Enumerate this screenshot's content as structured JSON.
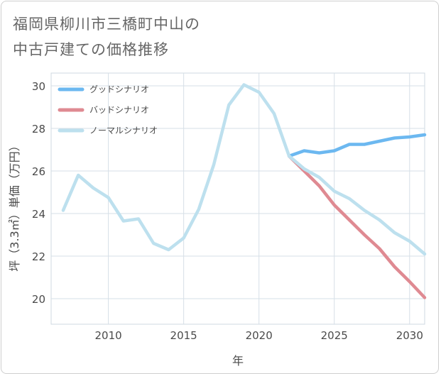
{
  "title_lines": [
    "福岡県柳川市三橋町中山の",
    "中古戸建ての価格推移"
  ],
  "chart_data": {
    "type": "line",
    "xlabel": "年",
    "ylabel": "坪（3.3㎡）単価（万円）",
    "xlim": [
      2006.2,
      2031
    ],
    "ylim": [
      18.8,
      30.6
    ],
    "xticks": [
      2010,
      2015,
      2020,
      2025,
      2030
    ],
    "yticks": [
      20,
      22,
      24,
      26,
      28,
      30
    ],
    "grid": true,
    "legend_position": "top-left",
    "series": [
      {
        "name": "グッドシナリオ",
        "color": "#6cb8f0",
        "x": [
          2022,
          2023,
          2024,
          2025,
          2026,
          2027,
          2028,
          2029,
          2030,
          2031
        ],
        "values": [
          26.7,
          26.95,
          26.85,
          26.95,
          27.25,
          27.25,
          27.4,
          27.55,
          27.6,
          27.7
        ]
      },
      {
        "name": "バッドシナリオ",
        "color": "#df8a92",
        "x": [
          2022,
          2023,
          2024,
          2025,
          2026,
          2027,
          2028,
          2029,
          2030,
          2031
        ],
        "values": [
          26.7,
          26.0,
          25.3,
          24.4,
          23.7,
          23.0,
          22.35,
          21.5,
          20.8,
          20.05
        ]
      },
      {
        "name": "ノーマルシナリオ",
        "color": "#bde0ee",
        "x": [
          2007,
          2008,
          2009,
          2010,
          2011,
          2012,
          2013,
          2014,
          2015,
          2016,
          2017,
          2018,
          2019,
          2020,
          2021,
          2022,
          2023,
          2024,
          2025,
          2026,
          2027,
          2028,
          2029,
          2030,
          2031
        ],
        "values": [
          24.15,
          25.8,
          25.2,
          24.75,
          23.65,
          23.75,
          22.6,
          22.3,
          22.85,
          24.2,
          26.3,
          29.1,
          30.05,
          29.7,
          28.7,
          26.7,
          26.1,
          25.7,
          25.05,
          24.7,
          24.15,
          23.7,
          23.1,
          22.7,
          22.1
        ]
      }
    ]
  }
}
